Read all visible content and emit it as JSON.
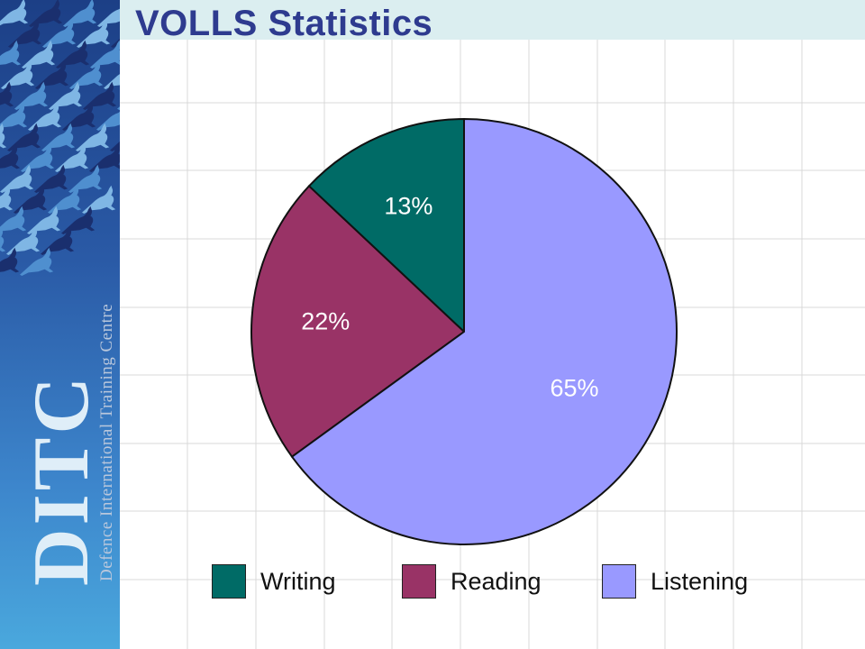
{
  "slide": {
    "title": "VOLLS Statistics"
  },
  "branding": {
    "logo_text": "DITC",
    "logo_subtitle": "Defence International Training Centre"
  },
  "chart_data": {
    "type": "pie",
    "categories": [
      "Writing",
      "Reading",
      "Listening"
    ],
    "values": [
      13,
      22,
      65
    ],
    "labels": [
      "13%",
      "22%",
      "65%"
    ],
    "colors": [
      "#006b66",
      "#993366",
      "#9999ff"
    ],
    "label_colors": [
      "#ffffff",
      "#ffffff",
      "#ffffff"
    ],
    "legend_position": "bottom"
  }
}
